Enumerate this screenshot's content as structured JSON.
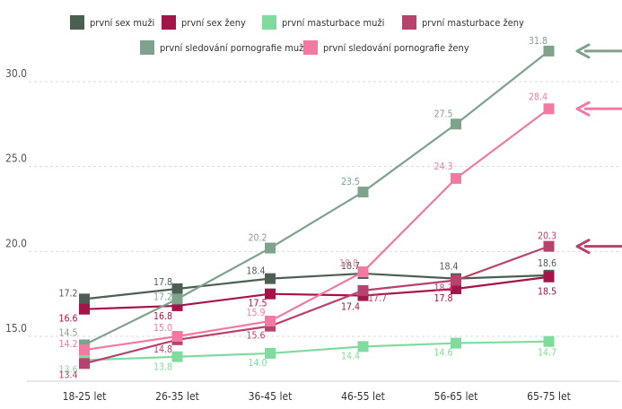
{
  "chart_data": {
    "type": "line",
    "categories": [
      "18-25 let",
      "26-35 let",
      "36-45 let",
      "46-55 let",
      "56-65 let",
      "65-75 let"
    ],
    "ylim": [
      13,
      32
    ],
    "yticks": [
      15.0,
      20.0,
      25.0,
      30.0
    ],
    "ytick_labels": [
      "15.0",
      "20.0",
      "25.0",
      "30.0"
    ],
    "grid": true,
    "legend_position": "top",
    "series": [
      {
        "name": "první sex muži",
        "color": "#4d5e52",
        "values": [
          17.2,
          17.8,
          18.4,
          18.7,
          18.4,
          18.6
        ],
        "labels": [
          "17.2",
          "17.8",
          "18.4",
          "18.7",
          "18.4",
          "18.6"
        ]
      },
      {
        "name": "první sex ženy",
        "color": "#a3154a",
        "values": [
          16.6,
          16.8,
          17.5,
          17.4,
          17.8,
          18.5
        ],
        "labels": [
          "16.6",
          "16.8",
          "17.5",
          "17.4",
          "17.8",
          "18.5"
        ]
      },
      {
        "name": "první masturbace muži",
        "color": "#7fdc9e",
        "values": [
          13.6,
          13.8,
          14.0,
          14.4,
          14.6,
          14.7
        ],
        "labels": [
          "13.6",
          "13.8",
          "14.0",
          "14.4",
          "14.6",
          "14.7"
        ]
      },
      {
        "name": "první masturbace ženy",
        "color": "#b8426e",
        "values": [
          13.4,
          14.8,
          15.6,
          17.7,
          18.3,
          20.3
        ],
        "labels": [
          "13.4",
          "14.8",
          "15.6",
          "17.7",
          "18.3",
          "20.3"
        ]
      },
      {
        "name": "první sledování pornografie muži",
        "color": "#7fa28c",
        "values": [
          14.5,
          17.2,
          20.2,
          23.5,
          27.5,
          31.8
        ],
        "labels": [
          "14.5",
          "17.2",
          "20.2",
          "23.5",
          "27.5",
          "31.8"
        ]
      },
      {
        "name": "první sledování pornografie ženy",
        "color": "#f27aa2",
        "values": [
          14.2,
          15.0,
          15.9,
          18.8,
          24.3,
          28.4
        ],
        "labels": [
          "14.2",
          "15.0",
          "15.9",
          "18.8",
          "24.3",
          "28.4"
        ]
      }
    ],
    "arrow_series": [
      4,
      5,
      3
    ]
  }
}
